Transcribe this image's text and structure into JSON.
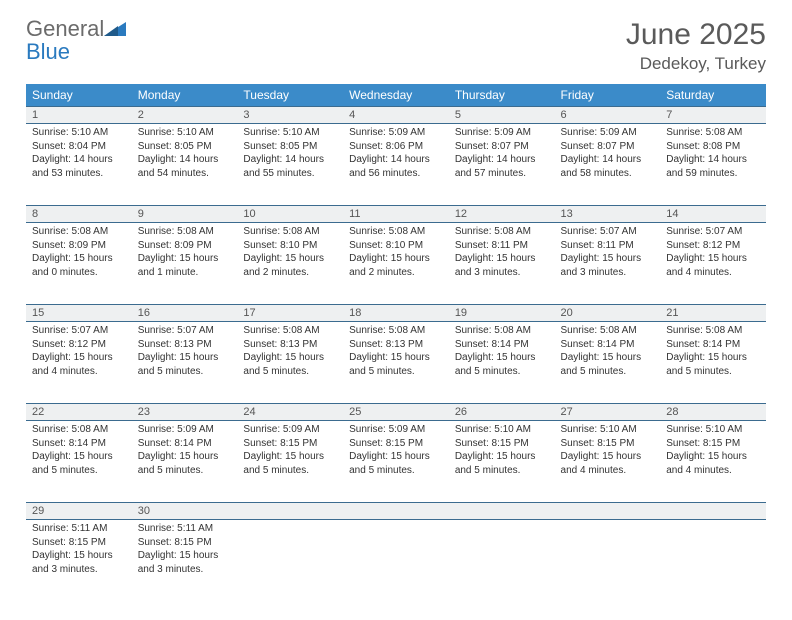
{
  "logo": {
    "text1": "General",
    "text2": "Blue"
  },
  "title": "June 2025",
  "location": "Dedekoy, Turkey",
  "colors": {
    "header_bg": "#3b8bc9",
    "header_text": "#ffffff",
    "border": "#3b6b8f",
    "daynum_bg": "#eef0f1",
    "logo_gray": "#6b6b6b",
    "logo_blue": "#2a7abf"
  },
  "day_headers": [
    "Sunday",
    "Monday",
    "Tuesday",
    "Wednesday",
    "Thursday",
    "Friday",
    "Saturday"
  ],
  "weeks": [
    [
      {
        "n": "1",
        "sr": "5:10 AM",
        "ss": "8:04 PM",
        "dl": "14 hours and 53 minutes."
      },
      {
        "n": "2",
        "sr": "5:10 AM",
        "ss": "8:05 PM",
        "dl": "14 hours and 54 minutes."
      },
      {
        "n": "3",
        "sr": "5:10 AM",
        "ss": "8:05 PM",
        "dl": "14 hours and 55 minutes."
      },
      {
        "n": "4",
        "sr": "5:09 AM",
        "ss": "8:06 PM",
        "dl": "14 hours and 56 minutes."
      },
      {
        "n": "5",
        "sr": "5:09 AM",
        "ss": "8:07 PM",
        "dl": "14 hours and 57 minutes."
      },
      {
        "n": "6",
        "sr": "5:09 AM",
        "ss": "8:07 PM",
        "dl": "14 hours and 58 minutes."
      },
      {
        "n": "7",
        "sr": "5:08 AM",
        "ss": "8:08 PM",
        "dl": "14 hours and 59 minutes."
      }
    ],
    [
      {
        "n": "8",
        "sr": "5:08 AM",
        "ss": "8:09 PM",
        "dl": "15 hours and 0 minutes."
      },
      {
        "n": "9",
        "sr": "5:08 AM",
        "ss": "8:09 PM",
        "dl": "15 hours and 1 minute."
      },
      {
        "n": "10",
        "sr": "5:08 AM",
        "ss": "8:10 PM",
        "dl": "15 hours and 2 minutes."
      },
      {
        "n": "11",
        "sr": "5:08 AM",
        "ss": "8:10 PM",
        "dl": "15 hours and 2 minutes."
      },
      {
        "n": "12",
        "sr": "5:08 AM",
        "ss": "8:11 PM",
        "dl": "15 hours and 3 minutes."
      },
      {
        "n": "13",
        "sr": "5:07 AM",
        "ss": "8:11 PM",
        "dl": "15 hours and 3 minutes."
      },
      {
        "n": "14",
        "sr": "5:07 AM",
        "ss": "8:12 PM",
        "dl": "15 hours and 4 minutes."
      }
    ],
    [
      {
        "n": "15",
        "sr": "5:07 AM",
        "ss": "8:12 PM",
        "dl": "15 hours and 4 minutes."
      },
      {
        "n": "16",
        "sr": "5:07 AM",
        "ss": "8:13 PM",
        "dl": "15 hours and 5 minutes."
      },
      {
        "n": "17",
        "sr": "5:08 AM",
        "ss": "8:13 PM",
        "dl": "15 hours and 5 minutes."
      },
      {
        "n": "18",
        "sr": "5:08 AM",
        "ss": "8:13 PM",
        "dl": "15 hours and 5 minutes."
      },
      {
        "n": "19",
        "sr": "5:08 AM",
        "ss": "8:14 PM",
        "dl": "15 hours and 5 minutes."
      },
      {
        "n": "20",
        "sr": "5:08 AM",
        "ss": "8:14 PM",
        "dl": "15 hours and 5 minutes."
      },
      {
        "n": "21",
        "sr": "5:08 AM",
        "ss": "8:14 PM",
        "dl": "15 hours and 5 minutes."
      }
    ],
    [
      {
        "n": "22",
        "sr": "5:08 AM",
        "ss": "8:14 PM",
        "dl": "15 hours and 5 minutes."
      },
      {
        "n": "23",
        "sr": "5:09 AM",
        "ss": "8:14 PM",
        "dl": "15 hours and 5 minutes."
      },
      {
        "n": "24",
        "sr": "5:09 AM",
        "ss": "8:15 PM",
        "dl": "15 hours and 5 minutes."
      },
      {
        "n": "25",
        "sr": "5:09 AM",
        "ss": "8:15 PM",
        "dl": "15 hours and 5 minutes."
      },
      {
        "n": "26",
        "sr": "5:10 AM",
        "ss": "8:15 PM",
        "dl": "15 hours and 5 minutes."
      },
      {
        "n": "27",
        "sr": "5:10 AM",
        "ss": "8:15 PM",
        "dl": "15 hours and 4 minutes."
      },
      {
        "n": "28",
        "sr": "5:10 AM",
        "ss": "8:15 PM",
        "dl": "15 hours and 4 minutes."
      }
    ],
    [
      {
        "n": "29",
        "sr": "5:11 AM",
        "ss": "8:15 PM",
        "dl": "15 hours and 3 minutes."
      },
      {
        "n": "30",
        "sr": "5:11 AM",
        "ss": "8:15 PM",
        "dl": "15 hours and 3 minutes."
      },
      null,
      null,
      null,
      null,
      null
    ]
  ],
  "labels": {
    "sunrise": "Sunrise:",
    "sunset": "Sunset:",
    "daylight": "Daylight:"
  }
}
